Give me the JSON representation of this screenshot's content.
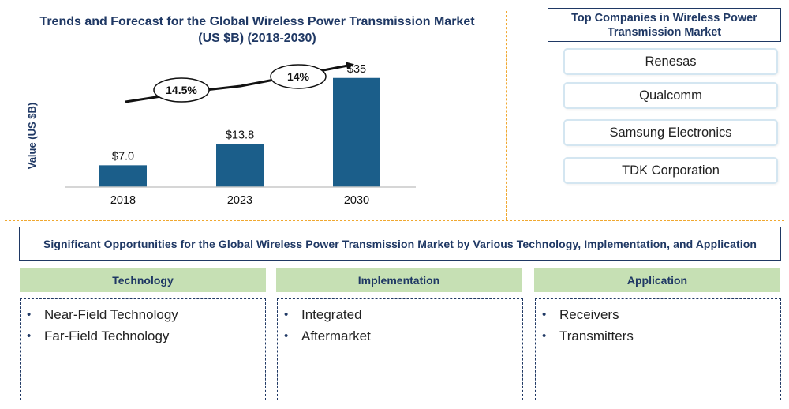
{
  "chart_data": {
    "type": "bar",
    "title": [
      "Trends and Forecast for the Global Wireless Power Transmission Market",
      "(US $B) (2018-2030)"
    ],
    "ylabel": "Value (US $B)",
    "categories": [
      "2018",
      "2023",
      "2030"
    ],
    "values": [
      7.0,
      13.8,
      35
    ],
    "data_labels": [
      "$7.0",
      "$13.8",
      "$35"
    ],
    "ylim": [
      0,
      40
    ],
    "grid": false,
    "bar_color": "#1b5e8a",
    "growth_labels": [
      "14.5%",
      "14%"
    ]
  },
  "companies": {
    "title": [
      "Top Companies in Wireless Power",
      "Transmission Market"
    ],
    "items": [
      "Renesas",
      "Qualcomm",
      "Samsung Electronics",
      "TDK Corporation"
    ]
  },
  "opportunities": {
    "banner": "Significant Opportunities for the Global Wireless Power Transmission Market by Various Technology, Implementation, and Application",
    "categories": [
      {
        "title": "Technology",
        "items": [
          "Near-Field Technology",
          "Far-Field Technology"
        ]
      },
      {
        "title": "Implementation",
        "items": [
          "Integrated",
          "Aftermarket"
        ]
      },
      {
        "title": "Application",
        "items": [
          "Receivers",
          "Transmitters"
        ]
      }
    ]
  }
}
